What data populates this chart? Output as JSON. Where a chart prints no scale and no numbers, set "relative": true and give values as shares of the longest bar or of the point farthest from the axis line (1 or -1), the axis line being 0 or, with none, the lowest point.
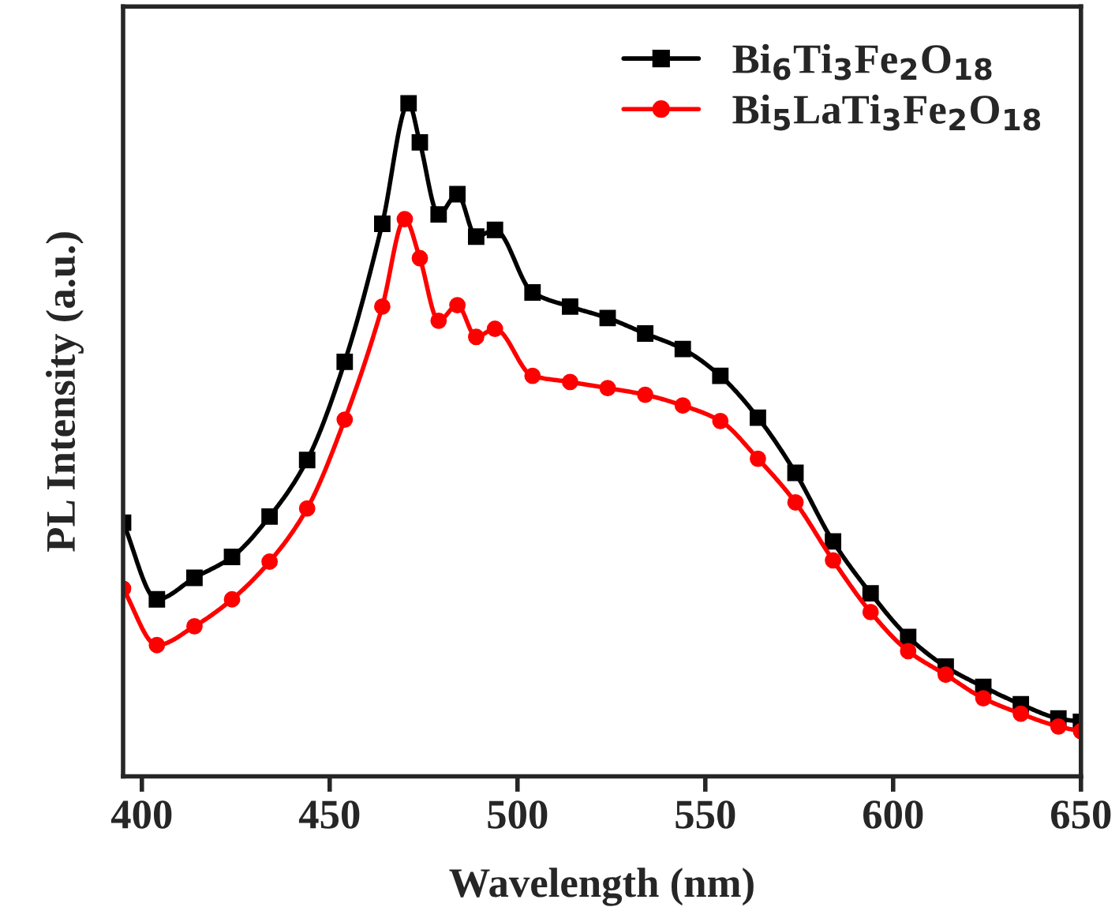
{
  "chart_data": {
    "type": "line",
    "xlabel": "Wavelength (nm)",
    "ylabel": "PL Intensity (a.u.)",
    "relative": true,
    "xlim": [
      395,
      650
    ],
    "xticks": [
      400,
      450,
      500,
      550,
      600,
      650
    ],
    "legend": "top right",
    "grid": false,
    "tick_labels": "x",
    "series": [
      {
        "name": "Bi$_{6}$Ti$_{3}$Fe$_{2}$O$_{18}$",
        "color": "#000000",
        "marker": "square",
        "x": [
          395,
          404,
          414,
          424,
          434,
          444,
          454,
          464,
          471,
          474,
          479,
          484,
          489,
          494,
          504,
          514,
          524,
          534,
          544,
          554,
          564,
          574,
          584,
          594,
          604,
          614,
          624,
          634,
          644,
          650
        ],
        "values": [
          0.377,
          0.263,
          0.295,
          0.326,
          0.386,
          0.47,
          0.616,
          0.821,
          1.0,
          0.942,
          0.835,
          0.865,
          0.802,
          0.812,
          0.719,
          0.698,
          0.681,
          0.658,
          0.635,
          0.595,
          0.533,
          0.451,
          0.349,
          0.272,
          0.207,
          0.163,
          0.133,
          0.107,
          0.086,
          0.081
        ]
      },
      {
        "name": "Bi$_{5}$LaTi$_{3}$Fe$_{2}$O$_{18}$",
        "color": "#ff0000",
        "marker": "circle",
        "x": [
          395,
          404,
          414,
          424,
          434,
          444,
          454,
          464,
          470,
          474,
          479,
          484,
          489,
          494,
          504,
          514,
          524,
          534,
          544,
          554,
          564,
          574,
          584,
          594,
          604,
          614,
          624,
          634,
          644,
          650
        ],
        "values": [
          0.279,
          0.195,
          0.223,
          0.263,
          0.319,
          0.398,
          0.53,
          0.698,
          0.828,
          0.77,
          0.677,
          0.7,
          0.653,
          0.665,
          0.595,
          0.586,
          0.577,
          0.567,
          0.551,
          0.528,
          0.472,
          0.407,
          0.321,
          0.244,
          0.186,
          0.151,
          0.116,
          0.093,
          0.074,
          0.067
        ]
      }
    ]
  }
}
